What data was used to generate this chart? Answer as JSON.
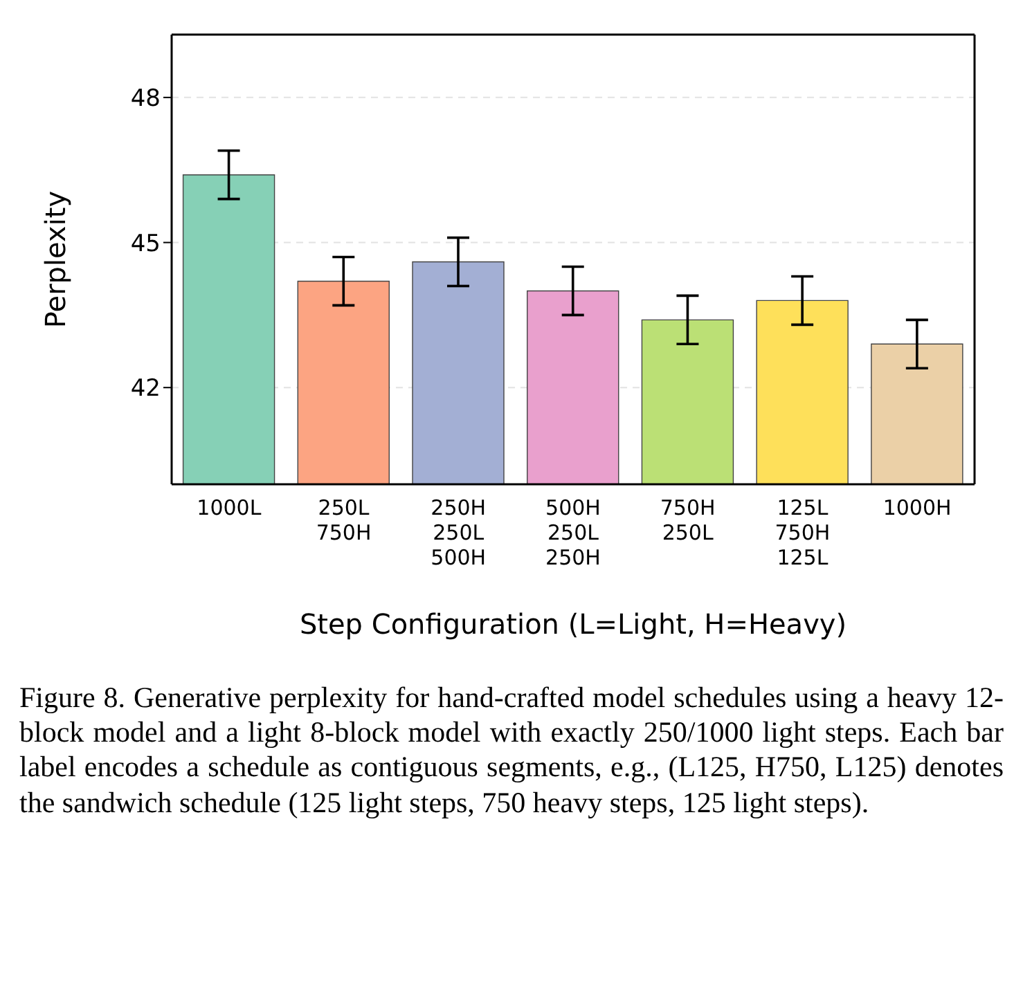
{
  "chart_data": {
    "type": "bar",
    "categories": [
      "1000L",
      "250L\n750H",
      "250H\n250L\n500H",
      "500H\n250L\n250H",
      "750H\n250L",
      "125L\n750H\n125L",
      "1000H"
    ],
    "values": [
      46.4,
      44.2,
      44.6,
      44.0,
      43.4,
      43.8,
      42.9
    ],
    "errors": [
      0.5,
      0.5,
      0.5,
      0.5,
      0.5,
      0.5,
      0.5
    ],
    "colors": [
      "#86d0b6",
      "#fca482",
      "#a3afd4",
      "#e9a0cd",
      "#bbe075",
      "#fee05a",
      "#ebd0a7"
    ],
    "xlabel": "Step Configuration (L=Light, H=Heavy)",
    "ylabel": "Perplexity",
    "ylim": [
      40,
      49.3
    ],
    "yticks": [
      42,
      45,
      48
    ],
    "grid": "y",
    "annotations": [
      "Figure 8. Generative perplexity for hand-crafted model schedules using a heavy 12-block model and a light 8-block model with exactly 250/1000 light steps. Each bar label encodes a schedule as contiguous segments, e.g., (L125, H750, L125) denotes the sandwich schedule (125 light steps, 750 heavy steps, 125 light steps)."
    ]
  }
}
